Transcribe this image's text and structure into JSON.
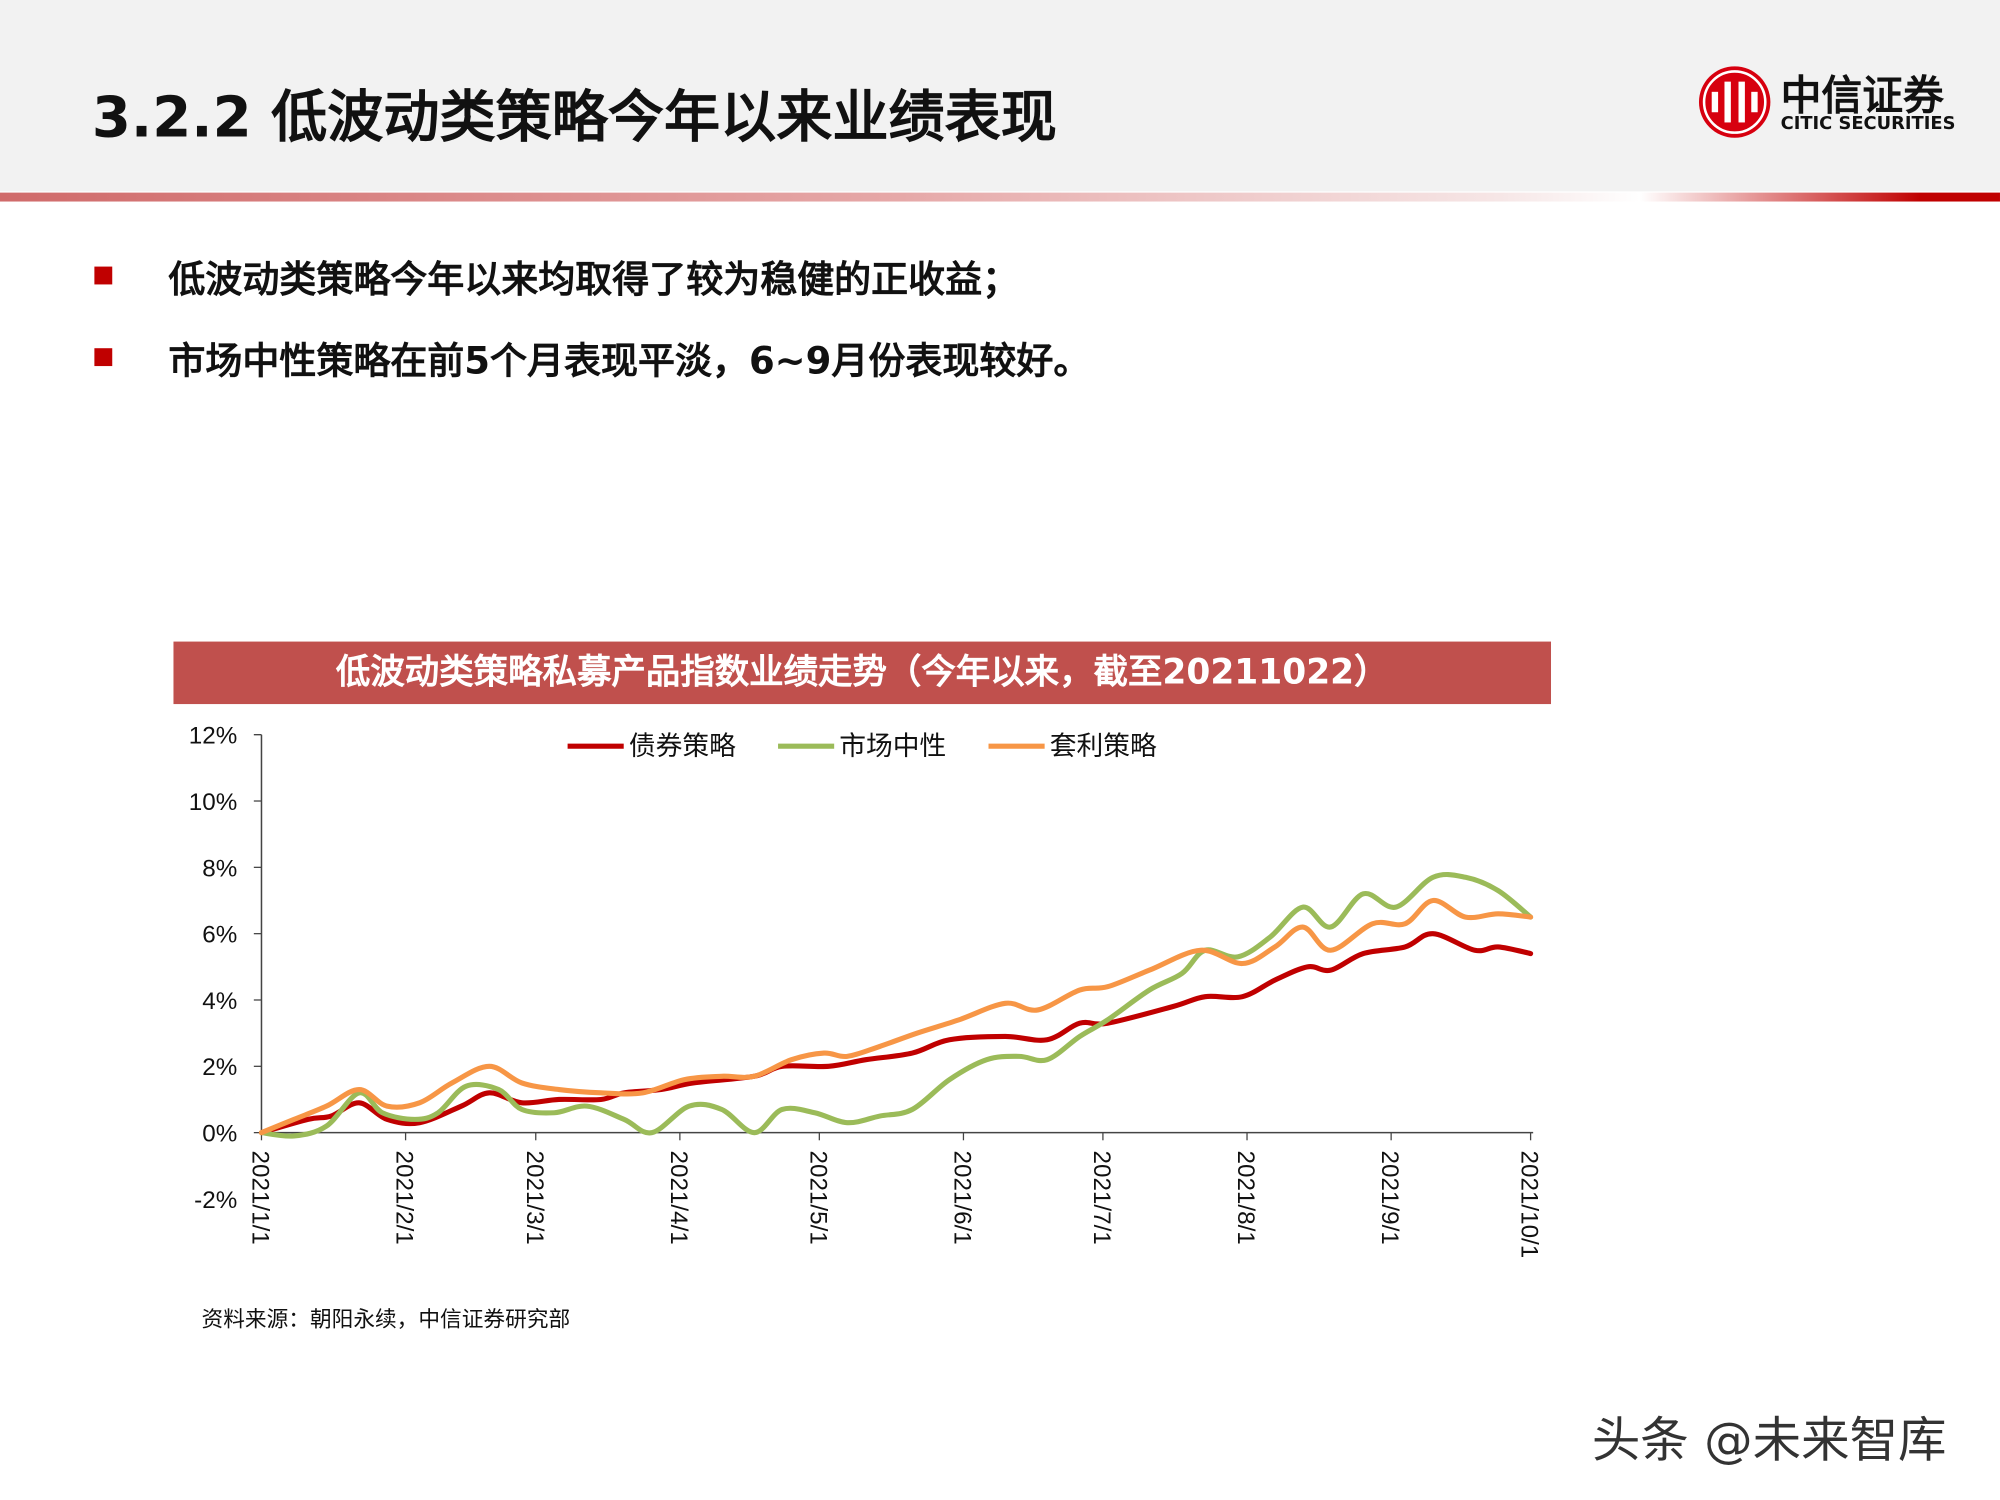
{
  "header": {
    "title": "3.2.2 低波动类策略今年以来业绩表现"
  },
  "logo": {
    "name_cn": "中信证券",
    "name_en": "CITIC SECURITIES",
    "color": "#d7000f"
  },
  "bullets": [
    "低波动类策略今年以来均取得了较为稳健的正收益；",
    "市场中性策略在前5个月表现平淡，6~9月份表现较好。"
  ],
  "colors": {
    "accent": "#c00000",
    "title_bar": "#c0504d"
  },
  "chart_data": {
    "type": "line",
    "title": "低波动类策略私募产品指数业绩走势（今年以来，截至20211022）",
    "xlabel": "",
    "ylabel": "",
    "ylim": [
      -2,
      12
    ],
    "yticks": [
      -2,
      0,
      2,
      4,
      6,
      8,
      10,
      12
    ],
    "ytick_labels": [
      "-2%",
      "0%",
      "2%",
      "4%",
      "6%",
      "8%",
      "10%",
      "12%"
    ],
    "xlim": [
      "2021-01-01",
      "2021-10-01"
    ],
    "xticks": [
      "2021-01-01",
      "2021-02-01",
      "2021-03-01",
      "2021-04-01",
      "2021-05-01",
      "2021-06-01",
      "2021-07-01",
      "2021-08-01",
      "2021-09-01",
      "2021-10-01"
    ],
    "xtick_labels": [
      "2021/1/1",
      "2021/2/1",
      "2021/3/1",
      "2021/4/1",
      "2021/5/1",
      "2021/6/1",
      "2021/7/1",
      "2021/8/1",
      "2021/9/1",
      "2021/10/1"
    ],
    "grid": false,
    "legend_position": "top-center",
    "series": [
      {
        "name": "债券策略",
        "color": "#c00000",
        "points": [
          [
            "2021-01-01",
            0
          ],
          [
            "2021-01-11",
            0.4
          ],
          [
            "2021-01-16",
            0.5
          ],
          [
            "2021-01-22",
            0.9
          ],
          [
            "2021-01-28",
            0.4
          ],
          [
            "2021-02-04",
            0.3
          ],
          [
            "2021-02-13",
            0.8
          ],
          [
            "2021-02-19",
            1.2
          ],
          [
            "2021-02-26",
            0.9
          ],
          [
            "2021-03-06",
            1.0
          ],
          [
            "2021-03-15",
            1.0
          ],
          [
            "2021-03-20",
            1.2
          ],
          [
            "2021-03-28",
            1.3
          ],
          [
            "2021-04-04",
            1.5
          ],
          [
            "2021-04-17",
            1.7
          ],
          [
            "2021-04-23",
            2.0
          ],
          [
            "2021-05-03",
            2.0
          ],
          [
            "2021-05-11",
            2.2
          ],
          [
            "2021-05-21",
            2.4
          ],
          [
            "2021-05-29",
            2.8
          ],
          [
            "2021-06-10",
            2.9
          ],
          [
            "2021-06-19",
            2.8
          ],
          [
            "2021-06-26",
            3.3
          ],
          [
            "2021-07-02",
            3.3
          ],
          [
            "2021-07-16",
            3.8
          ],
          [
            "2021-07-23",
            4.1
          ],
          [
            "2021-07-31",
            4.1
          ],
          [
            "2021-08-07",
            4.6
          ],
          [
            "2021-08-14",
            5.0
          ],
          [
            "2021-08-19",
            4.9
          ],
          [
            "2021-08-26",
            5.4
          ],
          [
            "2021-09-04",
            5.6
          ],
          [
            "2021-09-10",
            6.0
          ],
          [
            "2021-09-19",
            5.5
          ],
          [
            "2021-09-24",
            5.6
          ],
          [
            "2021-10-01",
            5.4
          ]
        ]
      },
      {
        "name": "市场中性",
        "color": "#9bbb59",
        "points": [
          [
            "2021-01-01",
            0
          ],
          [
            "2021-01-08",
            -0.1
          ],
          [
            "2021-01-15",
            0.2
          ],
          [
            "2021-01-22",
            1.2
          ],
          [
            "2021-01-27",
            0.6
          ],
          [
            "2021-02-03",
            0.4
          ],
          [
            "2021-02-08",
            0.6
          ],
          [
            "2021-02-14",
            1.4
          ],
          [
            "2021-02-21",
            1.3
          ],
          [
            "2021-02-26",
            0.7
          ],
          [
            "2021-03-05",
            0.6
          ],
          [
            "2021-03-12",
            0.8
          ],
          [
            "2021-03-20",
            0.4
          ],
          [
            "2021-03-26",
            0.0
          ],
          [
            "2021-04-03",
            0.8
          ],
          [
            "2021-04-10",
            0.7
          ],
          [
            "2021-04-17",
            0.0
          ],
          [
            "2021-04-23",
            0.7
          ],
          [
            "2021-04-30",
            0.6
          ],
          [
            "2021-05-07",
            0.3
          ],
          [
            "2021-05-14",
            0.5
          ],
          [
            "2021-05-21",
            0.7
          ],
          [
            "2021-05-29",
            1.6
          ],
          [
            "2021-06-06",
            2.2
          ],
          [
            "2021-06-13",
            2.3
          ],
          [
            "2021-06-19",
            2.2
          ],
          [
            "2021-06-26",
            2.9
          ],
          [
            "2021-07-02",
            3.4
          ],
          [
            "2021-07-11",
            4.3
          ],
          [
            "2021-07-18",
            4.8
          ],
          [
            "2021-07-23",
            5.5
          ],
          [
            "2021-07-30",
            5.3
          ],
          [
            "2021-08-06",
            5.9
          ],
          [
            "2021-08-13",
            6.8
          ],
          [
            "2021-08-19",
            6.2
          ],
          [
            "2021-08-26",
            7.2
          ],
          [
            "2021-09-02",
            6.8
          ],
          [
            "2021-09-10",
            7.7
          ],
          [
            "2021-09-17",
            7.7
          ],
          [
            "2021-09-24",
            7.3
          ],
          [
            "2021-10-01",
            6.5
          ]
        ]
      },
      {
        "name": "套利策略",
        "color": "#f79646",
        "points": [
          [
            "2021-01-01",
            0
          ],
          [
            "2021-01-08",
            0.4
          ],
          [
            "2021-01-15",
            0.8
          ],
          [
            "2021-01-22",
            1.3
          ],
          [
            "2021-01-28",
            0.8
          ],
          [
            "2021-02-04",
            0.9
          ],
          [
            "2021-02-11",
            1.5
          ],
          [
            "2021-02-19",
            2.0
          ],
          [
            "2021-02-26",
            1.5
          ],
          [
            "2021-03-06",
            1.3
          ],
          [
            "2021-03-15",
            1.2
          ],
          [
            "2021-03-24",
            1.2
          ],
          [
            "2021-04-02",
            1.6
          ],
          [
            "2021-04-10",
            1.7
          ],
          [
            "2021-04-17",
            1.7
          ],
          [
            "2021-04-25",
            2.2
          ],
          [
            "2021-05-02",
            2.4
          ],
          [
            "2021-05-07",
            2.3
          ],
          [
            "2021-05-14",
            2.6
          ],
          [
            "2021-05-22",
            3.0
          ],
          [
            "2021-05-31",
            3.4
          ],
          [
            "2021-06-10",
            3.9
          ],
          [
            "2021-06-17",
            3.7
          ],
          [
            "2021-06-26",
            4.3
          ],
          [
            "2021-07-02",
            4.4
          ],
          [
            "2021-07-11",
            4.9
          ],
          [
            "2021-07-22",
            5.5
          ],
          [
            "2021-07-31",
            5.1
          ],
          [
            "2021-08-07",
            5.6
          ],
          [
            "2021-08-13",
            6.2
          ],
          [
            "2021-08-19",
            5.5
          ],
          [
            "2021-08-28",
            6.3
          ],
          [
            "2021-09-04",
            6.3
          ],
          [
            "2021-09-10",
            7.0
          ],
          [
            "2021-09-17",
            6.5
          ],
          [
            "2021-09-24",
            6.6
          ],
          [
            "2021-10-01",
            6.5
          ]
        ]
      }
    ]
  },
  "footer": {
    "source": "资料来源：朝阳永续，中信证券研究部",
    "watermark": "头条 @未来智库"
  }
}
